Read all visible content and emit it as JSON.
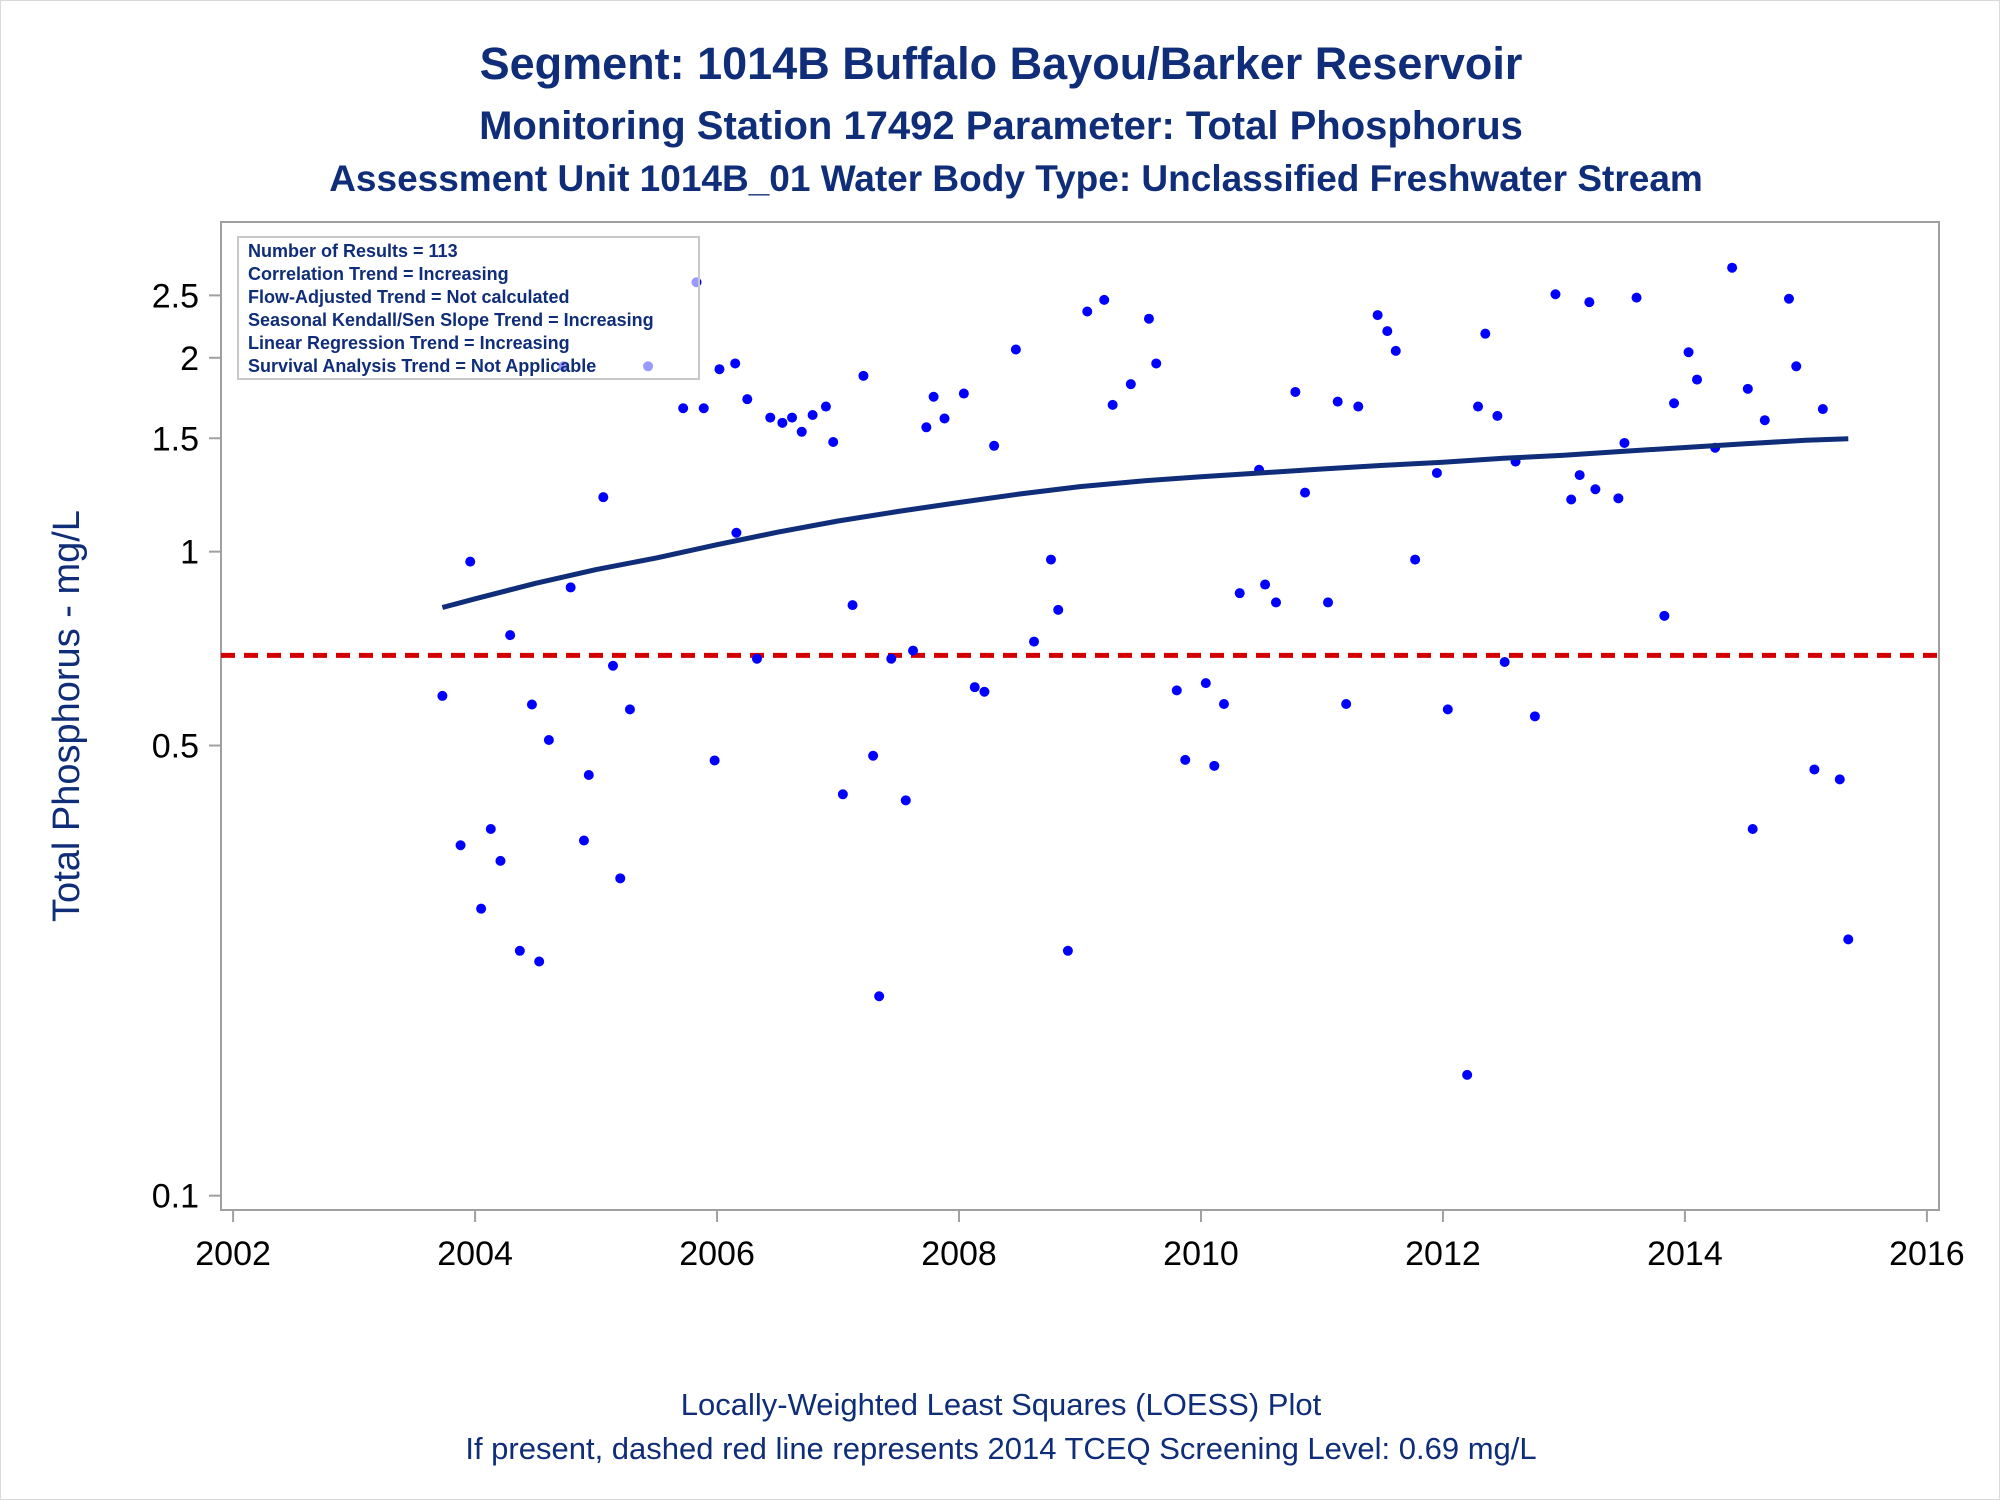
{
  "colors": {
    "title": "#0f2d78",
    "points": "#0000ff",
    "trend": "#0f2d78",
    "screening": "#d40000",
    "frame": "#a0a0a0"
  },
  "chart_data": {
    "type": "scatter",
    "title": "Segment: 1014B  Buffalo Bayou/Barker Reservoir",
    "subtitle": "Monitoring Station 17492 Parameter: Total Phosphorus",
    "subtitle2": "Assessment Unit 1014B_01   Water Body Type: Unclassified Freshwater Stream",
    "xlabel": "",
    "ylabel": "Total Phosphorus - mg/L",
    "y_scale": "log",
    "xlim": [
      2001.9,
      2016.1
    ],
    "ylim": [
      0.095,
      3.25
    ],
    "xticks": [
      2002,
      2004,
      2006,
      2008,
      2010,
      2012,
      2014,
      2016
    ],
    "yticks": [
      {
        "value": 0.1,
        "label": "0.1"
      },
      {
        "value": 0.5,
        "label": "0.5"
      },
      {
        "value": 1,
        "label": "1"
      },
      {
        "value": 1.5,
        "label": "1.5"
      },
      {
        "value": 2,
        "label": "2"
      },
      {
        "value": 2.5,
        "label": "2.5"
      }
    ],
    "legend_position": "top-left",
    "stats": [
      "Number of Results = 113",
      "Correlation Trend = Increasing",
      "Flow-Adjusted Trend = Not calculated",
      "Seasonal Kendall/Sen Slope Trend = Increasing",
      "Linear Regression Trend = Increasing",
      "Survival Analysis Trend = Not Applicable"
    ],
    "screening_level": 0.69,
    "footer": [
      "Locally-Weighted Least Squares (LOESS) Plot",
      "If present, dashed red line represents 2014 TCEQ Screening Level: 0.69 mg/L"
    ],
    "series": [
      {
        "type": "scatter",
        "points": [
          [
            2003.73,
            0.597
          ],
          [
            2003.88,
            0.35
          ],
          [
            2003.96,
            0.965
          ],
          [
            2004.05,
            0.279
          ],
          [
            2004.13,
            0.371
          ],
          [
            2004.21,
            0.331
          ],
          [
            2004.29,
            0.742
          ],
          [
            2004.37,
            0.24
          ],
          [
            2004.47,
            0.579
          ],
          [
            2004.53,
            0.231
          ],
          [
            2004.61,
            0.51
          ],
          [
            2004.73,
            1.94
          ],
          [
            2004.79,
            0.88
          ],
          [
            2004.9,
            0.356
          ],
          [
            2004.94,
            0.45
          ],
          [
            2005.06,
            1.215
          ],
          [
            2005.14,
            0.665
          ],
          [
            2005.2,
            0.311
          ],
          [
            2005.28,
            0.569
          ],
          [
            2005.43,
            1.94
          ],
          [
            2005.72,
            1.67
          ],
          [
            2005.83,
            2.62
          ],
          [
            2005.89,
            1.67
          ],
          [
            2005.98,
            0.474
          ],
          [
            2006.02,
            1.92
          ],
          [
            2006.15,
            1.96
          ],
          [
            2006.16,
            1.07
          ],
          [
            2006.25,
            1.725
          ],
          [
            2006.33,
            0.682
          ],
          [
            2006.44,
            1.615
          ],
          [
            2006.54,
            1.585
          ],
          [
            2006.62,
            1.615
          ],
          [
            2006.7,
            1.535
          ],
          [
            2006.79,
            1.63
          ],
          [
            2006.9,
            1.68
          ],
          [
            2006.96,
            1.48
          ],
          [
            2007.04,
            0.42
          ],
          [
            2007.12,
            0.826
          ],
          [
            2007.21,
            1.875
          ],
          [
            2007.29,
            0.482
          ],
          [
            2007.34,
            0.204
          ],
          [
            2007.44,
            0.682
          ],
          [
            2007.56,
            0.411
          ],
          [
            2007.62,
            0.702
          ],
          [
            2007.73,
            1.56
          ],
          [
            2007.79,
            1.74
          ],
          [
            2007.88,
            1.61
          ],
          [
            2008.04,
            1.76
          ],
          [
            2008.13,
            0.616
          ],
          [
            2008.21,
            0.606
          ],
          [
            2008.29,
            1.46
          ],
          [
            2008.47,
            2.06
          ],
          [
            2008.62,
            0.725
          ],
          [
            2008.76,
            0.972
          ],
          [
            2008.82,
            0.812
          ],
          [
            2008.9,
            0.24
          ],
          [
            2009.06,
            2.36
          ],
          [
            2009.2,
            2.46
          ],
          [
            2009.27,
            1.69
          ],
          [
            2009.42,
            1.82
          ],
          [
            2009.57,
            2.3
          ],
          [
            2009.63,
            1.96
          ],
          [
            2009.8,
            0.609
          ],
          [
            2009.87,
            0.475
          ],
          [
            2010.04,
            0.625
          ],
          [
            2010.11,
            0.465
          ],
          [
            2010.19,
            0.58
          ],
          [
            2010.32,
            0.862
          ],
          [
            2010.48,
            1.34
          ],
          [
            2010.53,
            0.889
          ],
          [
            2010.62,
            0.834
          ],
          [
            2010.78,
            1.77
          ],
          [
            2010.86,
            1.235
          ],
          [
            2011.05,
            0.834
          ],
          [
            2011.13,
            1.71
          ],
          [
            2011.2,
            0.58
          ],
          [
            2011.3,
            1.68
          ],
          [
            2011.46,
            2.33
          ],
          [
            2011.54,
            2.2
          ],
          [
            2011.61,
            2.05
          ],
          [
            2011.77,
            0.972
          ],
          [
            2011.95,
            1.325
          ],
          [
            2012.04,
            0.569
          ],
          [
            2012.2,
            0.154
          ],
          [
            2012.29,
            1.68
          ],
          [
            2012.35,
            2.18
          ],
          [
            2012.45,
            1.625
          ],
          [
            2012.51,
            0.674
          ],
          [
            2012.6,
            1.38
          ],
          [
            2012.76,
            0.555
          ],
          [
            2012.93,
            2.51
          ],
          [
            2013.06,
            1.205
          ],
          [
            2013.13,
            1.315
          ],
          [
            2013.21,
            2.44
          ],
          [
            2013.26,
            1.25
          ],
          [
            2013.45,
            1.21
          ],
          [
            2013.5,
            1.475
          ],
          [
            2013.6,
            2.48
          ],
          [
            2013.83,
            0.795
          ],
          [
            2013.91,
            1.7
          ],
          [
            2014.03,
            2.04
          ],
          [
            2014.1,
            1.85
          ],
          [
            2014.25,
            1.45
          ],
          [
            2014.39,
            2.76
          ],
          [
            2014.52,
            1.79
          ],
          [
            2014.56,
            0.371
          ],
          [
            2014.66,
            1.6
          ],
          [
            2014.86,
            2.47
          ],
          [
            2014.92,
            1.94
          ],
          [
            2015.07,
            0.459
          ],
          [
            2015.14,
            1.665
          ],
          [
            2015.28,
            0.443
          ],
          [
            2015.35,
            0.25
          ]
        ]
      },
      {
        "type": "line",
        "points": [
          [
            2003.73,
            0.819
          ],
          [
            2004.0,
            0.845
          ],
          [
            2004.5,
            0.893
          ],
          [
            2005.0,
            0.938
          ],
          [
            2005.5,
            0.978
          ],
          [
            2006.0,
            1.025
          ],
          [
            2006.5,
            1.072
          ],
          [
            2007.0,
            1.116
          ],
          [
            2007.5,
            1.155
          ],
          [
            2008.0,
            1.192
          ],
          [
            2008.5,
            1.229
          ],
          [
            2009.0,
            1.262
          ],
          [
            2009.5,
            1.287
          ],
          [
            2010.0,
            1.307
          ],
          [
            2010.5,
            1.325
          ],
          [
            2011.0,
            1.344
          ],
          [
            2011.5,
            1.361
          ],
          [
            2012.0,
            1.377
          ],
          [
            2012.5,
            1.396
          ],
          [
            2013.0,
            1.412
          ],
          [
            2013.5,
            1.432
          ],
          [
            2014.0,
            1.451
          ],
          [
            2014.5,
            1.471
          ],
          [
            2015.0,
            1.489
          ],
          [
            2015.35,
            1.497
          ]
        ]
      }
    ]
  }
}
